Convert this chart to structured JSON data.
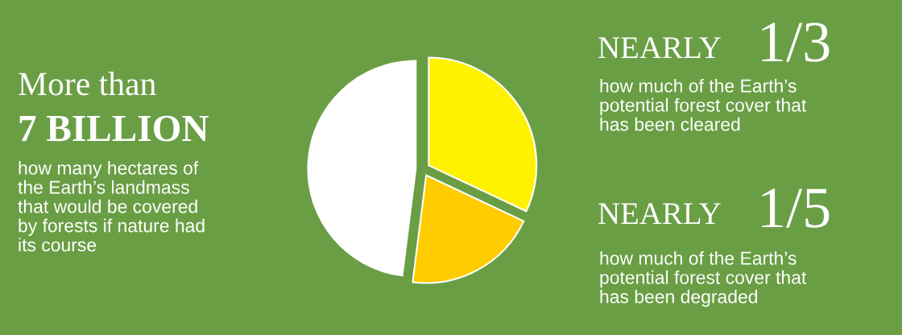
{
  "chart_data": {
    "type": "pie",
    "categories": [
      null,
      null,
      null
    ],
    "values": [
      32,
      20,
      48
    ],
    "colors": [
      "#fff200",
      "#ffcc00",
      "#ffffff"
    ],
    "annotations": [
      "More than",
      "7 BILLION",
      "how many hectares of\nthe Earth’s landmass\nthat would be covered\nby forests if nature had\nits course",
      "NEARLY",
      "1/3",
      "how much of the Earth’s\npotential forest cover that\nhas been cleared",
      "NEARLY",
      "1/5",
      "how much of the Earth’s\npotential forest cover that\nhas been degraded"
    ]
  }
}
